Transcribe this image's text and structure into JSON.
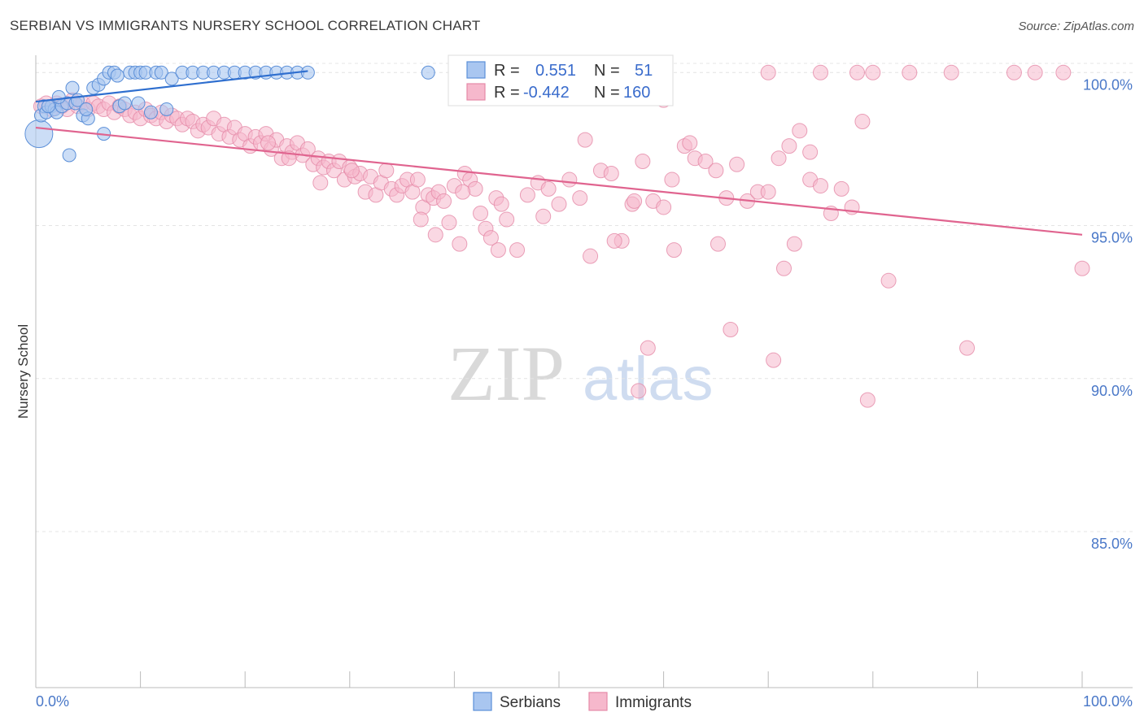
{
  "title": "SERBIAN VS IMMIGRANTS NURSERY SCHOOL CORRELATION CHART",
  "source": "Source: ZipAtlas.com",
  "watermark": {
    "zip": "ZIP",
    "atlas": "atlas"
  },
  "colors": {
    "serbians_fill": "#a9c6f0",
    "serbians_stroke": "#5b8fd8",
    "serbians_line": "#2f6fcf",
    "immigrants_fill": "#f6b8cc",
    "immigrants_stroke": "#e58aa8",
    "immigrants_line": "#e0648f",
    "tick_color": "#4a78c8",
    "grid": "#e4e4e4"
  },
  "legend": {
    "r_label": "R =",
    "n_label": "N =",
    "serbians": {
      "r": "0.551",
      "n": "51"
    },
    "immigrants": {
      "r": "-0.442",
      "n": "160"
    }
  },
  "chart_data": {
    "type": "scatter",
    "title": "SERBIAN VS IMMIGRANTS NURSERY SCHOOL CORRELATION CHART",
    "xlabel": "",
    "ylabel": "Nursery School",
    "xlim": [
      0,
      100
    ],
    "ylim": [
      80.5,
      101.0
    ],
    "x_ticks": [
      "0.0%",
      "100.0%"
    ],
    "y_ticks": [
      {
        "value": 100,
        "label": "100.0%"
      },
      {
        "value": 95,
        "label": "95.0%"
      },
      {
        "value": 90,
        "label": "90.0%"
      },
      {
        "value": 85,
        "label": "85.0%"
      }
    ],
    "series": [
      {
        "name": "Serbians",
        "trend": {
          "x": [
            0,
            26
          ],
          "y": [
            99.05,
            100.05
          ]
        },
        "points": [
          [
            0.3,
            98.0
          ],
          [
            0.5,
            98.6
          ],
          [
            0.8,
            98.9
          ],
          [
            1.0,
            98.7
          ],
          [
            1.5,
            98.9
          ],
          [
            1.8,
            98.8
          ],
          [
            2.0,
            98.7
          ],
          [
            2.5,
            98.9
          ],
          [
            3.0,
            99.0
          ],
          [
            3.5,
            99.5
          ],
          [
            3.8,
            99.0
          ],
          [
            4.0,
            99.1
          ],
          [
            4.5,
            98.6
          ],
          [
            5.0,
            98.5
          ],
          [
            5.5,
            99.5
          ],
          [
            6.0,
            99.6
          ],
          [
            6.5,
            99.8
          ],
          [
            7.0,
            100.0
          ],
          [
            7.5,
            100.0
          ],
          [
            8.0,
            98.9
          ],
          [
            8.5,
            99.0
          ],
          [
            9.0,
            100.0
          ],
          [
            9.5,
            100.0
          ],
          [
            10.0,
            100.0
          ],
          [
            10.5,
            100.0
          ],
          [
            11.0,
            98.7
          ],
          [
            11.5,
            100.0
          ],
          [
            12.0,
            100.0
          ],
          [
            12.5,
            98.8
          ],
          [
            13.0,
            99.8
          ],
          [
            14.0,
            100.0
          ],
          [
            15.0,
            100.0
          ],
          [
            16.0,
            100.0
          ],
          [
            17.0,
            100.0
          ],
          [
            18.0,
            100.0
          ],
          [
            19.0,
            100.0
          ],
          [
            20.0,
            100.0
          ],
          [
            21.0,
            100.0
          ],
          [
            22.0,
            100.0
          ],
          [
            23.0,
            100.0
          ],
          [
            24.0,
            100.0
          ],
          [
            25.0,
            100.0
          ],
          [
            26.0,
            100.0
          ],
          [
            2.2,
            99.2
          ],
          [
            3.2,
            97.3
          ],
          [
            6.5,
            98.0
          ],
          [
            1.2,
            98.9
          ],
          [
            4.8,
            98.8
          ],
          [
            7.8,
            99.9
          ],
          [
            9.8,
            99.0
          ],
          [
            37.5,
            100.0
          ]
        ]
      },
      {
        "name": "Immigrants",
        "trend": {
          "x": [
            0,
            100
          ],
          "y": [
            98.2,
            94.7
          ]
        },
        "points": [
          [
            0.5,
            98.9
          ],
          [
            1.0,
            99.0
          ],
          [
            1.5,
            98.8
          ],
          [
            2.0,
            99.0
          ],
          [
            2.5,
            98.9
          ],
          [
            3.0,
            98.8
          ],
          [
            3.5,
            99.1
          ],
          [
            4.0,
            98.9
          ],
          [
            4.5,
            99.0
          ],
          [
            5.0,
            98.8
          ],
          [
            5.5,
            99.0
          ],
          [
            6.0,
            98.9
          ],
          [
            6.5,
            98.8
          ],
          [
            7.0,
            99.0
          ],
          [
            7.5,
            98.7
          ],
          [
            8.0,
            98.9
          ],
          [
            8.5,
            98.8
          ],
          [
            9.0,
            98.6
          ],
          [
            9.5,
            98.7
          ],
          [
            10.0,
            98.5
          ],
          [
            10.5,
            98.8
          ],
          [
            11.0,
            98.6
          ],
          [
            11.5,
            98.5
          ],
          [
            12.0,
            98.7
          ],
          [
            12.5,
            98.4
          ],
          [
            13.0,
            98.6
          ],
          [
            13.5,
            98.5
          ],
          [
            14.0,
            98.3
          ],
          [
            14.5,
            98.5
          ],
          [
            15.0,
            98.4
          ],
          [
            15.5,
            98.1
          ],
          [
            16.0,
            98.3
          ],
          [
            16.5,
            98.2
          ],
          [
            17.0,
            98.5
          ],
          [
            17.5,
            98.0
          ],
          [
            18.0,
            98.3
          ],
          [
            18.5,
            97.9
          ],
          [
            19.0,
            98.2
          ],
          [
            19.5,
            97.8
          ],
          [
            20.0,
            98.0
          ],
          [
            20.5,
            97.6
          ],
          [
            21.0,
            97.9
          ],
          [
            21.5,
            97.7
          ],
          [
            22.0,
            98.0
          ],
          [
            22.5,
            97.5
          ],
          [
            23.0,
            97.8
          ],
          [
            23.5,
            97.2
          ],
          [
            24.0,
            97.6
          ],
          [
            24.5,
            97.4
          ],
          [
            25.0,
            97.7
          ],
          [
            25.5,
            97.3
          ],
          [
            26.0,
            97.5
          ],
          [
            26.5,
            97.0
          ],
          [
            27.0,
            97.2
          ],
          [
            27.5,
            96.9
          ],
          [
            28.0,
            97.1
          ],
          [
            28.5,
            96.8
          ],
          [
            29.0,
            97.1
          ],
          [
            29.5,
            96.5
          ],
          [
            30.0,
            96.9
          ],
          [
            30.5,
            96.6
          ],
          [
            31.0,
            96.7
          ],
          [
            31.5,
            96.1
          ],
          [
            32.0,
            96.6
          ],
          [
            32.5,
            96.0
          ],
          [
            33.0,
            96.4
          ],
          [
            33.5,
            96.8
          ],
          [
            34.0,
            96.2
          ],
          [
            34.5,
            96.0
          ],
          [
            35.0,
            96.3
          ],
          [
            35.5,
            96.5
          ],
          [
            36.0,
            96.1
          ],
          [
            36.5,
            96.5
          ],
          [
            37.0,
            95.6
          ],
          [
            37.5,
            96.0
          ],
          [
            38.0,
            95.9
          ],
          [
            38.5,
            96.1
          ],
          [
            39.0,
            95.8
          ],
          [
            39.5,
            95.1
          ],
          [
            40.0,
            96.3
          ],
          [
            40.5,
            94.4
          ],
          [
            41.0,
            96.7
          ],
          [
            41.5,
            96.5
          ],
          [
            42.0,
            96.2
          ],
          [
            42.5,
            95.4
          ],
          [
            43.0,
            94.9
          ],
          [
            43.5,
            94.6
          ],
          [
            44.0,
            95.9
          ],
          [
            44.5,
            95.7
          ],
          [
            45.0,
            95.2
          ],
          [
            46.0,
            94.2
          ],
          [
            47.0,
            96.0
          ],
          [
            48.0,
            96.4
          ],
          [
            49.0,
            96.2
          ],
          [
            50.0,
            95.7
          ],
          [
            51.0,
            96.5
          ],
          [
            52.0,
            95.9
          ],
          [
            53.0,
            94.0
          ],
          [
            54.0,
            96.8
          ],
          [
            55.0,
            96.7
          ],
          [
            56.0,
            94.5
          ],
          [
            57.0,
            95.7
          ],
          [
            58.0,
            97.1
          ],
          [
            59.0,
            95.8
          ],
          [
            60.0,
            95.6
          ],
          [
            61.0,
            94.2
          ],
          [
            62.0,
            97.6
          ],
          [
            63.0,
            97.2
          ],
          [
            64.0,
            97.1
          ],
          [
            65.0,
            96.8
          ],
          [
            66.0,
            95.9
          ],
          [
            67.0,
            97.0
          ],
          [
            68.0,
            95.8
          ],
          [
            69.0,
            96.1
          ],
          [
            70.0,
            96.1
          ],
          [
            71.0,
            97.2
          ],
          [
            72.0,
            97.6
          ],
          [
            73.0,
            98.1
          ],
          [
            74.0,
            96.5
          ],
          [
            75.0,
            96.3
          ],
          [
            76.0,
            95.4
          ],
          [
            77.0,
            96.2
          ],
          [
            78.0,
            95.6
          ],
          [
            79.0,
            98.4
          ],
          [
            60.8,
            96.5
          ],
          [
            57.2,
            95.8
          ],
          [
            62.5,
            97.7
          ],
          [
            65.2,
            94.4
          ],
          [
            66.4,
            91.6
          ],
          [
            70.0,
            100.0
          ],
          [
            75.0,
            100.0
          ],
          [
            78.5,
            100.0
          ],
          [
            80.0,
            100.0
          ],
          [
            83.5,
            100.0
          ],
          [
            87.5,
            100.0
          ],
          [
            93.5,
            100.0
          ],
          [
            95.5,
            100.0
          ],
          [
            98.2,
            100.0
          ],
          [
            52.5,
            97.8
          ],
          [
            55.3,
            94.5
          ],
          [
            58.5,
            91.0
          ],
          [
            57.6,
            89.6
          ],
          [
            70.5,
            90.6
          ],
          [
            71.5,
            93.6
          ],
          [
            81.5,
            93.2
          ],
          [
            79.5,
            89.3
          ],
          [
            89.0,
            91.0
          ],
          [
            100.0,
            93.6
          ],
          [
            60.0,
            99.1
          ],
          [
            74.0,
            97.4
          ],
          [
            72.5,
            94.4
          ],
          [
            48.5,
            95.3
          ],
          [
            44.2,
            94.2
          ],
          [
            38.2,
            94.7
          ],
          [
            36.8,
            95.2
          ],
          [
            30.2,
            96.8
          ],
          [
            27.2,
            96.4
          ],
          [
            24.2,
            97.2
          ],
          [
            22.2,
            97.7
          ],
          [
            40.8,
            96.1
          ]
        ]
      }
    ]
  },
  "bottom_legend": {
    "serbians": "Serbians",
    "immigrants": "Immigrants"
  }
}
